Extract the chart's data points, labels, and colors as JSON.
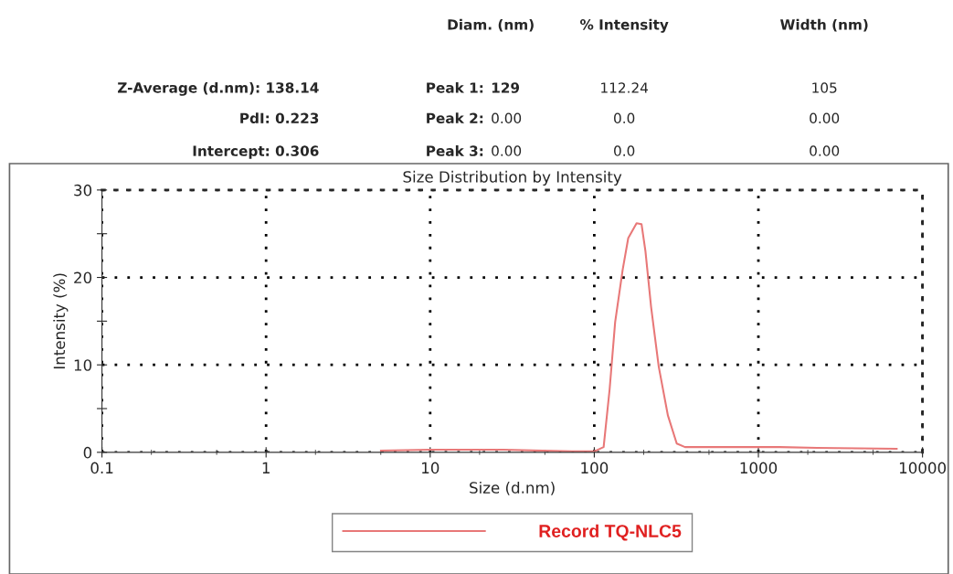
{
  "chart_data": {
    "type": "line",
    "title": "Size Distribution by Intensity",
    "xlabel": "Size (d.nm)",
    "ylabel": "Intensity (%)",
    "annotations": [
      "Diam. (nm)",
      "% Intensity",
      "Width (nm)",
      "Z-Average (d.nm): 138.14",
      "Peak 1:",
      "129",
      "112.24",
      "105",
      "PdI: 0.223",
      "Peak 2:",
      "0.00",
      "0.0",
      "0.00",
      "Intercept: 0.306",
      "Peak 3:",
      "0.00",
      "0.0",
      "0.00"
    ],
    "log": "x",
    "xlim": [
      0.1,
      10000
    ],
    "xticks": [
      0.1,
      1,
      10,
      100,
      1000,
      10000
    ],
    "ylim": [
      0,
      30
    ],
    "yticks": [
      0,
      {
        "value": 5,
        "label": null
      },
      10,
      {
        "value": 15,
        "label": null
      },
      20,
      {
        "value": 25,
        "label": null
      },
      30
    ],
    "grid": true,
    "legend": "bottom",
    "marker": "none",
    "line_style": "solid",
    "series": [
      {
        "name": "Record TQ-NLC5",
        "color": "#e87878",
        "x": [
          5.0,
          10,
          28,
          73,
          100,
          114,
          124,
          134,
          149,
          161,
          181,
          194,
          205,
          222,
          247,
          281,
          318,
          357,
          1349,
          2290,
          6980
        ],
        "values": [
          0.2,
          0.3,
          0.3,
          0.1,
          0.1,
          0.6,
          7.2,
          14.9,
          20.9,
          24.5,
          26.2,
          26.1,
          23.0,
          16.6,
          9.8,
          4.2,
          1.0,
          0.6,
          0.6,
          0.5,
          0.4
        ]
      }
    ]
  }
}
